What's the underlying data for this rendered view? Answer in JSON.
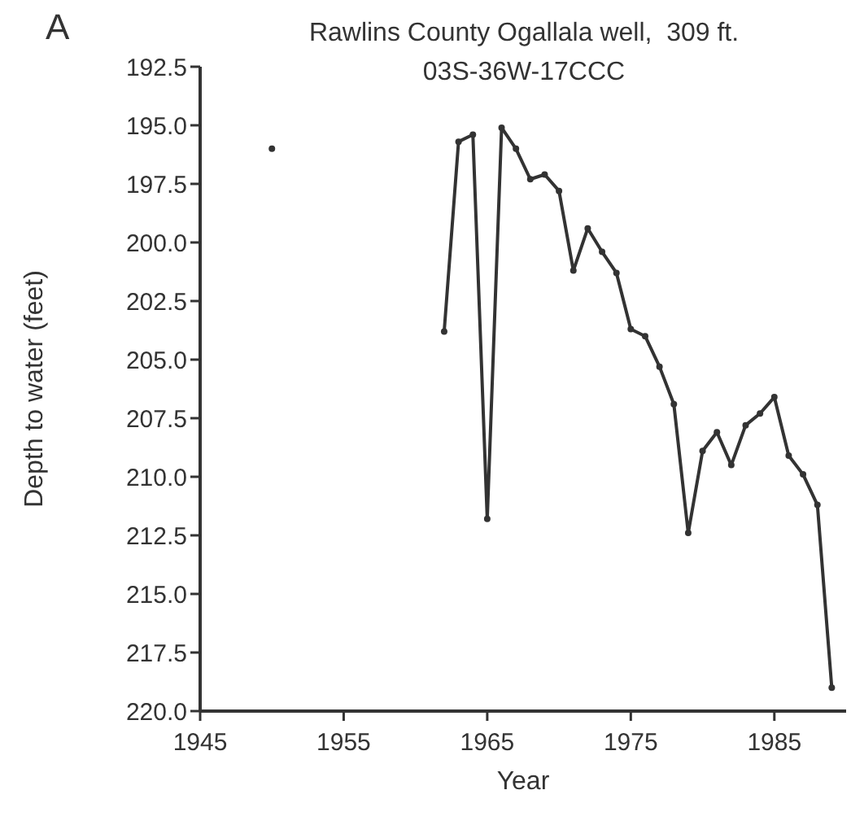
{
  "chart_data": {
    "type": "line",
    "title": "Rawlins County Ogallala well,  309 ft.",
    "subtitle": "03S-36W-17CCC",
    "xlabel": "Year",
    "ylabel": "Depth to water (feet)",
    "annotations": [
      "A"
    ],
    "xlim": [
      1945,
      1990
    ],
    "xticks": [
      1945,
      1955,
      1965,
      1975,
      1985
    ],
    "ylim": [
      220,
      192.5
    ],
    "yticks": [
      {
        "value": 192.5,
        "label": "192.5"
      },
      {
        "value": 195,
        "label": "195.0"
      },
      {
        "value": 197.5,
        "label": "197.5"
      },
      {
        "value": 200,
        "label": "200.0"
      },
      {
        "value": 202.5,
        "label": "202.5"
      },
      {
        "value": 205,
        "label": "205.0"
      },
      {
        "value": 207.5,
        "label": "207.5"
      },
      {
        "value": 210,
        "label": "210.0"
      },
      {
        "value": 212.5,
        "label": "212.5"
      },
      {
        "value": 215,
        "label": "215.0"
      },
      {
        "value": 217.5,
        "label": "217.5"
      },
      {
        "value": 220,
        "label": "220.0"
      }
    ],
    "grid": false,
    "marker": "circle",
    "line_style": "solid",
    "series": [
      {
        "type": "scatter",
        "color": "#333333",
        "x": [
          1950
        ],
        "values": [
          196.0
        ]
      },
      {
        "color": "#333333",
        "x": [
          1962,
          1963,
          1964,
          1965,
          1966,
          1967,
          1968,
          1969,
          1970,
          1971,
          1972,
          1973,
          1974,
          1975,
          1976,
          1977,
          1978,
          1979,
          1980,
          1981,
          1982,
          1983,
          1984,
          1985,
          1986,
          1987,
          1988,
          1989
        ],
        "values": [
          203.8,
          195.7,
          195.4,
          211.8,
          195.1,
          196.0,
          197.3,
          197.1,
          197.8,
          201.2,
          199.4,
          200.4,
          201.3,
          203.7,
          204.0,
          205.3,
          206.9,
          212.4,
          208.9,
          208.1,
          209.5,
          207.8,
          207.3,
          206.6,
          209.1,
          209.9,
          211.2,
          219.0
        ]
      }
    ]
  }
}
